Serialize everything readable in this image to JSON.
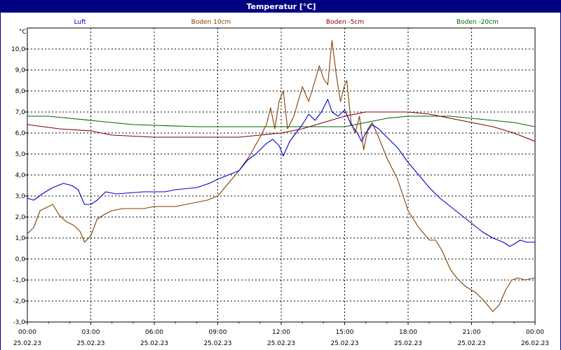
{
  "window": {
    "title": "Temperatur [°C]"
  },
  "chart_data": {
    "type": "line",
    "ylabel": "°C",
    "ylim": [
      -3.0,
      11.0
    ],
    "y_ticks": [
      "10,0",
      "9,0",
      "8,0",
      "7,0",
      "6,0",
      "5,0",
      "4,0",
      "3,0",
      "2,0",
      "1,0",
      "0,0",
      "-1,0",
      "-2,0",
      "-3,0"
    ],
    "x_hours": [
      0,
      3,
      6,
      9,
      12,
      15,
      18,
      21,
      24
    ],
    "x_tick_times": [
      "00:00",
      "03:00",
      "06:00",
      "09:00",
      "12:00",
      "15:00",
      "18:00",
      "21:00",
      "00:00"
    ],
    "x_tick_dates": [
      "25.02.23",
      "25.02.23",
      "25.02.23",
      "25.02.23",
      "25.02.23",
      "25.02.23",
      "25.02.23",
      "25.02.23",
      "26.02.23"
    ],
    "grid": true,
    "series": [
      {
        "name": "Luft",
        "color": "#0000cc",
        "points": [
          [
            0,
            2.9
          ],
          [
            0.3,
            2.8
          ],
          [
            0.7,
            3.1
          ],
          [
            1.2,
            3.4
          ],
          [
            1.7,
            3.6
          ],
          [
            2.1,
            3.5
          ],
          [
            2.4,
            3.3
          ],
          [
            2.7,
            2.6
          ],
          [
            3.0,
            2.6
          ],
          [
            3.3,
            2.8
          ],
          [
            3.7,
            3.2
          ],
          [
            4.2,
            3.1
          ],
          [
            5.5,
            3.2
          ],
          [
            6.5,
            3.2
          ],
          [
            7.0,
            3.3
          ],
          [
            8.0,
            3.4
          ],
          [
            8.6,
            3.6
          ],
          [
            9.0,
            3.8
          ],
          [
            9.5,
            4.0
          ],
          [
            10.0,
            4.2
          ],
          [
            10.4,
            4.7
          ],
          [
            10.8,
            5.0
          ],
          [
            11.0,
            5.2
          ],
          [
            11.3,
            5.5
          ],
          [
            11.6,
            5.7
          ],
          [
            11.9,
            5.4
          ],
          [
            12.1,
            4.9
          ],
          [
            12.4,
            5.6
          ],
          [
            12.7,
            6.0
          ],
          [
            13.0,
            6.4
          ],
          [
            13.3,
            6.9
          ],
          [
            13.6,
            6.6
          ],
          [
            13.9,
            7.0
          ],
          [
            14.2,
            7.6
          ],
          [
            14.4,
            7.0
          ],
          [
            14.7,
            6.8
          ],
          [
            15.0,
            7.1
          ],
          [
            15.3,
            6.4
          ],
          [
            15.6,
            6.0
          ],
          [
            15.8,
            5.6
          ],
          [
            16.0,
            6.0
          ],
          [
            16.3,
            6.4
          ],
          [
            16.6,
            6.2
          ],
          [
            17.0,
            5.8
          ],
          [
            17.5,
            5.3
          ],
          [
            18.0,
            4.6
          ],
          [
            18.5,
            4.0
          ],
          [
            19.0,
            3.4
          ],
          [
            19.5,
            2.9
          ],
          [
            20.0,
            2.5
          ],
          [
            20.5,
            2.1
          ],
          [
            21.0,
            1.7
          ],
          [
            21.5,
            1.3
          ],
          [
            22.0,
            1.0
          ],
          [
            22.5,
            0.8
          ],
          [
            22.8,
            0.6
          ],
          [
            23.0,
            0.7
          ],
          [
            23.3,
            0.9
          ],
          [
            23.6,
            0.8
          ],
          [
            24.0,
            0.8
          ]
        ]
      },
      {
        "name": "Boden 10cm",
        "color": "#804000",
        "points": [
          [
            0,
            1.2
          ],
          [
            0.3,
            1.5
          ],
          [
            0.6,
            2.3
          ],
          [
            1.0,
            2.5
          ],
          [
            1.2,
            2.6
          ],
          [
            1.5,
            2.1
          ],
          [
            1.8,
            1.8
          ],
          [
            2.2,
            1.6
          ],
          [
            2.5,
            1.3
          ],
          [
            2.7,
            0.8
          ],
          [
            3.0,
            1.1
          ],
          [
            3.3,
            1.9
          ],
          [
            3.6,
            2.1
          ],
          [
            4.0,
            2.3
          ],
          [
            4.5,
            2.4
          ],
          [
            5.0,
            2.4
          ],
          [
            5.5,
            2.4
          ],
          [
            6.0,
            2.5
          ],
          [
            7.0,
            2.5
          ],
          [
            7.5,
            2.6
          ],
          [
            8.0,
            2.7
          ],
          [
            8.5,
            2.8
          ],
          [
            9.0,
            3.0
          ],
          [
            9.5,
            3.6
          ],
          [
            10.0,
            4.2
          ],
          [
            10.5,
            4.9
          ],
          [
            11.0,
            5.8
          ],
          [
            11.3,
            6.4
          ],
          [
            11.5,
            7.2
          ],
          [
            11.7,
            6.2
          ],
          [
            11.9,
            7.5
          ],
          [
            12.1,
            8.0
          ],
          [
            12.3,
            6.2
          ],
          [
            12.6,
            6.8
          ],
          [
            12.8,
            7.5
          ],
          [
            13.0,
            8.2
          ],
          [
            13.3,
            7.5
          ],
          [
            13.6,
            8.5
          ],
          [
            13.8,
            9.2
          ],
          [
            14.0,
            8.6
          ],
          [
            14.2,
            8.3
          ],
          [
            14.4,
            10.4
          ],
          [
            14.6,
            8.8
          ],
          [
            14.8,
            7.5
          ],
          [
            15.0,
            8.3
          ],
          [
            15.1,
            8.5
          ],
          [
            15.3,
            6.5
          ],
          [
            15.5,
            6.0
          ],
          [
            15.7,
            6.8
          ],
          [
            15.9,
            5.2
          ],
          [
            16.1,
            6.2
          ],
          [
            16.3,
            6.5
          ],
          [
            16.6,
            5.8
          ],
          [
            17.0,
            4.8
          ],
          [
            17.5,
            3.8
          ],
          [
            18.0,
            2.3
          ],
          [
            18.5,
            1.5
          ],
          [
            19.0,
            0.9
          ],
          [
            19.3,
            0.9
          ],
          [
            19.6,
            0.4
          ],
          [
            20.0,
            -0.5
          ],
          [
            20.3,
            -0.9
          ],
          [
            20.7,
            -1.3
          ],
          [
            21.2,
            -1.6
          ],
          [
            21.6,
            -2.0
          ],
          [
            22.0,
            -2.5
          ],
          [
            22.3,
            -2.2
          ],
          [
            22.6,
            -1.5
          ],
          [
            22.9,
            -1.0
          ],
          [
            23.2,
            -0.9
          ],
          [
            23.5,
            -1.0
          ],
          [
            24.0,
            -0.9
          ]
        ]
      },
      {
        "name": "Boden -5cm",
        "color": "#800000",
        "points": [
          [
            0,
            6.4
          ],
          [
            1.5,
            6.2
          ],
          [
            3.0,
            6.1
          ],
          [
            4.0,
            5.9
          ],
          [
            6.0,
            5.8
          ],
          [
            8.0,
            5.8
          ],
          [
            10.0,
            5.8
          ],
          [
            11.0,
            5.9
          ],
          [
            12.0,
            6.0
          ],
          [
            13.0,
            6.2
          ],
          [
            14.0,
            6.5
          ],
          [
            15.0,
            6.8
          ],
          [
            16.0,
            7.0
          ],
          [
            17.0,
            7.0
          ],
          [
            18.0,
            7.0
          ],
          [
            19.0,
            6.9
          ],
          [
            20.0,
            6.7
          ],
          [
            21.0,
            6.5
          ],
          [
            22.0,
            6.3
          ],
          [
            23.0,
            6.0
          ],
          [
            24.0,
            5.6
          ]
        ]
      },
      {
        "name": "Boden -20cm",
        "color": "#006600",
        "points": [
          [
            0,
            6.8
          ],
          [
            1.0,
            6.8
          ],
          [
            2.0,
            6.7
          ],
          [
            3.0,
            6.6
          ],
          [
            5.0,
            6.4
          ],
          [
            8.0,
            6.3
          ],
          [
            10.0,
            6.3
          ],
          [
            12.0,
            6.3
          ],
          [
            14.0,
            6.3
          ],
          [
            15.0,
            6.3
          ],
          [
            16.0,
            6.5
          ],
          [
            17.0,
            6.7
          ],
          [
            18.0,
            6.8
          ],
          [
            19.0,
            6.8
          ],
          [
            20.0,
            6.8
          ],
          [
            21.0,
            6.7
          ],
          [
            22.0,
            6.6
          ],
          [
            23.0,
            6.5
          ],
          [
            24.0,
            6.3
          ]
        ]
      }
    ]
  }
}
